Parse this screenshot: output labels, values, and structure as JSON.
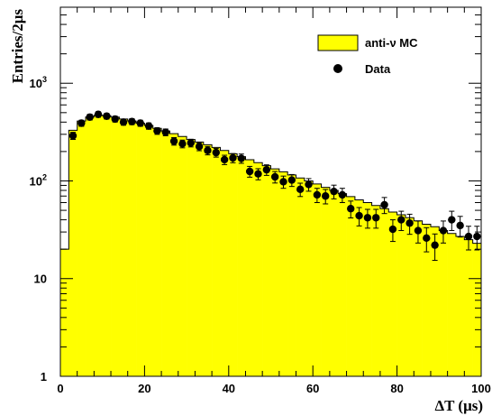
{
  "chart_data": {
    "type": "histogram",
    "title": "",
    "xlabel": "ΔT (μs)",
    "ylabel": "Entries/2μs",
    "xlim": [
      0,
      100
    ],
    "ylim": [
      1,
      6000
    ],
    "y_scale": "log",
    "x_ticks": [
      "0",
      "20",
      "40",
      "60",
      "80",
      "100"
    ],
    "y_ticks": [
      {
        "base": "1",
        "exp": ""
      },
      {
        "base": "10",
        "exp": ""
      },
      {
        "base": "10",
        "exp": "2"
      },
      {
        "base": "10",
        "exp": "3"
      }
    ],
    "legend": {
      "position": "top-right",
      "mc_label": "anti-ν MC",
      "data_label": "Data"
    },
    "colors": {
      "mc_fill": "#ffff00",
      "mc_line": "#000000",
      "data": "#000000"
    },
    "bin_width": 2,
    "mc": {
      "name": "anti-ν MC",
      "x_low": [
        0,
        2,
        4,
        6,
        8,
        10,
        12,
        14,
        16,
        18,
        20,
        22,
        24,
        26,
        28,
        30,
        32,
        34,
        36,
        38,
        40,
        42,
        44,
        46,
        48,
        50,
        52,
        54,
        56,
        58,
        60,
        62,
        64,
        66,
        68,
        70,
        72,
        74,
        76,
        78,
        80,
        82,
        84,
        86,
        88,
        90,
        92,
        94,
        96,
        98
      ],
      "values": [
        20,
        330,
        410,
        450,
        470,
        465,
        450,
        430,
        410,
        390,
        370,
        345,
        325,
        305,
        285,
        265,
        250,
        235,
        220,
        205,
        190,
        177,
        165,
        154,
        143,
        133,
        124,
        115,
        107,
        100,
        93,
        86,
        80,
        74,
        69,
        64,
        60,
        56,
        52,
        48,
        45,
        42,
        39,
        36,
        34,
        31,
        29,
        27,
        25,
        23
      ]
    },
    "data": {
      "name": "Data",
      "x": [
        3,
        5,
        7,
        9,
        11,
        13,
        15,
        17,
        19,
        21,
        23,
        25,
        27,
        29,
        31,
        33,
        35,
        37,
        39,
        41,
        43,
        45,
        47,
        49,
        51,
        53,
        55,
        57,
        59,
        61,
        63,
        65,
        67,
        69,
        71,
        73,
        75,
        77,
        79,
        81,
        83,
        85,
        87,
        89,
        91,
        93,
        95,
        97,
        99
      ],
      "y": [
        290,
        390,
        450,
        480,
        460,
        430,
        400,
        405,
        390,
        365,
        325,
        315,
        255,
        240,
        245,
        225,
        205,
        195,
        165,
        172,
        170,
        125,
        118,
        130,
        110,
        98,
        102,
        82,
        92,
        72,
        70,
        78,
        72,
        52,
        44,
        42,
        42,
        57,
        32,
        40,
        37,
        31,
        26,
        22,
        31,
        40,
        35,
        27,
        27
      ]
    }
  }
}
